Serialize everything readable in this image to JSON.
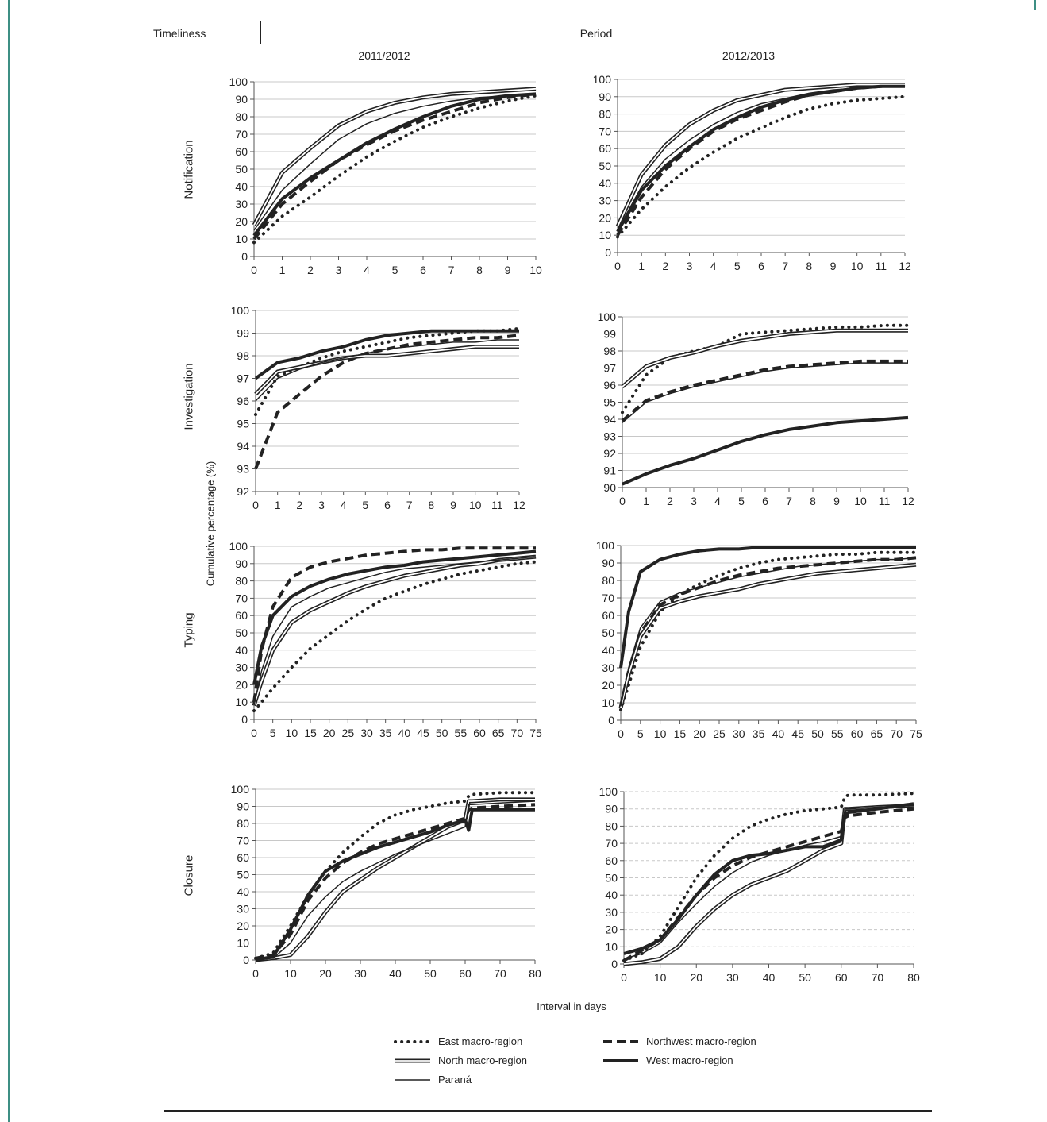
{
  "header": {
    "col1": "Timeliness",
    "col2": "Period"
  },
  "periods": [
    "2011/2012",
    "2012/2013"
  ],
  "rows": [
    "Notification",
    "Investigation",
    "Typing",
    "Closure"
  ],
  "y_axis_title": "Cumulative percentage (%)",
  "x_axis_title": "Interval in days",
  "series_names": [
    "East macro-region",
    "Northwest macro-region",
    "North macro-region",
    "West macro-region",
    "Paraná"
  ],
  "chart_data": [
    {
      "type": "line",
      "panel": "Notification 2011/2012",
      "xlim": [
        0,
        10
      ],
      "ylim": [
        0,
        100
      ],
      "xticks": [
        0,
        1,
        2,
        3,
        4,
        5,
        6,
        7,
        8,
        9,
        10
      ],
      "yticks": [
        0,
        10,
        20,
        30,
        40,
        50,
        60,
        70,
        80,
        90,
        100
      ],
      "x": [
        0,
        1,
        2,
        3,
        4,
        5,
        6,
        7,
        8,
        9,
        10
      ],
      "series": [
        {
          "name": "East macro-region",
          "values": [
            8,
            23,
            34,
            46,
            57,
            66,
            74,
            80,
            85,
            89,
            92
          ]
        },
        {
          "name": "Northwest macro-region",
          "values": [
            10,
            30,
            43,
            55,
            64,
            72,
            78,
            83,
            88,
            91,
            93
          ]
        },
        {
          "name": "North macro-region",
          "values": [
            18,
            48,
            62,
            75,
            83,
            88,
            91,
            93,
            94,
            95,
            96
          ]
        },
        {
          "name": "West macro-region",
          "values": [
            12,
            33,
            45,
            55,
            65,
            73,
            80,
            86,
            90,
            92,
            93
          ]
        },
        {
          "name": "Paraná",
          "values": [
            15,
            38,
            53,
            67,
            76,
            82,
            86,
            89,
            91,
            92,
            93
          ]
        }
      ]
    },
    {
      "type": "line",
      "panel": "Notification 2012/2013",
      "xlim": [
        0,
        12
      ],
      "ylim": [
        0,
        100
      ],
      "xticks": [
        0,
        1,
        2,
        3,
        4,
        5,
        6,
        7,
        8,
        9,
        10,
        11,
        12
      ],
      "yticks": [
        0,
        10,
        20,
        30,
        40,
        50,
        60,
        70,
        80,
        90,
        100
      ],
      "x": [
        0,
        1,
        2,
        3,
        4,
        5,
        6,
        7,
        8,
        9,
        10,
        11,
        12
      ],
      "series": [
        {
          "name": "East macro-region",
          "values": [
            9,
            25,
            38,
            49,
            58,
            66,
            72,
            78,
            83,
            86,
            88,
            89,
            90
          ]
        },
        {
          "name": "Northwest macro-region",
          "values": [
            10,
            32,
            48,
            60,
            70,
            77,
            82,
            87,
            91,
            93,
            95,
            96,
            97
          ]
        },
        {
          "name": "North macro-region",
          "values": [
            15,
            45,
            62,
            74,
            82,
            88,
            91,
            94,
            95,
            96,
            97,
            97,
            97
          ]
        },
        {
          "name": "West macro-region",
          "values": [
            12,
            36,
            50,
            61,
            71,
            78,
            84,
            88,
            91,
            93,
            95,
            96,
            96
          ]
        },
        {
          "name": "Paraná",
          "values": [
            13,
            38,
            54,
            65,
            74,
            81,
            86,
            89,
            92,
            94,
            95,
            96,
            96
          ]
        }
      ]
    },
    {
      "type": "line",
      "panel": "Investigation 2011/2012",
      "xlim": [
        0,
        12
      ],
      "ylim": [
        92,
        100
      ],
      "xticks": [
        0,
        1,
        2,
        3,
        4,
        5,
        6,
        7,
        8,
        9,
        10,
        11,
        12
      ],
      "yticks": [
        92,
        93,
        94,
        95,
        96,
        97,
        98,
        99,
        100
      ],
      "x": [
        0,
        1,
        2,
        3,
        4,
        5,
        6,
        7,
        8,
        9,
        10,
        11,
        12
      ],
      "series": [
        {
          "name": "East macro-region",
          "values": [
            95.4,
            97.1,
            97.5,
            97.9,
            98.2,
            98.4,
            98.6,
            98.8,
            98.9,
            99.0,
            99.1,
            99.1,
            99.2
          ]
        },
        {
          "name": "Northwest macro-region",
          "values": [
            93.0,
            95.5,
            96.3,
            97.1,
            97.7,
            98.1,
            98.3,
            98.5,
            98.6,
            98.7,
            98.8,
            98.8,
            98.9
          ]
        },
        {
          "name": "North macro-region",
          "values": [
            96.3,
            97.3,
            97.5,
            97.7,
            97.9,
            98.0,
            98.0,
            98.1,
            98.2,
            98.3,
            98.4,
            98.4,
            98.4
          ]
        },
        {
          "name": "West macro-region",
          "values": [
            97.0,
            97.7,
            97.9,
            98.2,
            98.4,
            98.7,
            98.9,
            99.0,
            99.1,
            99.1,
            99.1,
            99.1,
            99.1
          ]
        },
        {
          "name": "Paraná",
          "values": [
            96.0,
            97.0,
            97.4,
            97.7,
            97.9,
            98.1,
            98.3,
            98.4,
            98.5,
            98.6,
            98.6,
            98.7,
            98.7
          ]
        }
      ]
    },
    {
      "type": "line",
      "panel": "Investigation 2012/2013",
      "xlim": [
        0,
        12
      ],
      "ylim": [
        90,
        100
      ],
      "xticks": [
        0,
        1,
        2,
        3,
        4,
        5,
        6,
        7,
        8,
        9,
        10,
        11,
        12
      ],
      "yticks": [
        90,
        91,
        92,
        93,
        94,
        95,
        96,
        97,
        98,
        99,
        100
      ],
      "x": [
        0,
        1,
        2,
        3,
        4,
        5,
        6,
        7,
        8,
        9,
        10,
        11,
        12
      ],
      "series": [
        {
          "name": "East macro-region",
          "values": [
            94.4,
            96.6,
            97.6,
            98.0,
            98.3,
            99.0,
            99.1,
            99.2,
            99.3,
            99.4,
            99.4,
            99.5,
            99.5
          ]
        },
        {
          "name": "Northwest macro-region",
          "values": [
            93.9,
            95.1,
            95.6,
            96.0,
            96.3,
            96.6,
            96.9,
            97.1,
            97.2,
            97.3,
            97.4,
            97.4,
            97.4
          ]
        },
        {
          "name": "North macro-region",
          "values": [
            95.9,
            97.1,
            97.6,
            97.9,
            98.3,
            98.6,
            98.8,
            99.0,
            99.1,
            99.2,
            99.2,
            99.2,
            99.2
          ]
        },
        {
          "name": "West macro-region",
          "values": [
            90.2,
            90.8,
            91.3,
            91.7,
            92.2,
            92.7,
            93.1,
            93.4,
            93.6,
            93.8,
            93.9,
            94.0,
            94.1
          ]
        },
        {
          "name": "Paraná",
          "values": [
            93.8,
            95.0,
            95.5,
            95.9,
            96.2,
            96.5,
            96.8,
            97.0,
            97.1,
            97.2,
            97.3,
            97.3,
            97.3
          ]
        }
      ]
    },
    {
      "type": "line",
      "panel": "Typing 2011/2012",
      "xlim": [
        0,
        75
      ],
      "ylim": [
        0,
        100
      ],
      "xticks": [
        0,
        5,
        10,
        15,
        20,
        25,
        30,
        35,
        40,
        45,
        50,
        55,
        60,
        65,
        70,
        75
      ],
      "yticks": [
        0,
        10,
        20,
        30,
        40,
        50,
        60,
        70,
        80,
        90,
        100
      ],
      "x": [
        0,
        2,
        5,
        10,
        15,
        20,
        25,
        30,
        35,
        40,
        45,
        50,
        55,
        60,
        65,
        70,
        75
      ],
      "series": [
        {
          "name": "East macro-region",
          "values": [
            5,
            10,
            18,
            30,
            41,
            49,
            57,
            64,
            70,
            74,
            78,
            81,
            84,
            86,
            88,
            90,
            91
          ]
        },
        {
          "name": "Northwest macro-region",
          "values": [
            10,
            40,
            65,
            82,
            88,
            91,
            93,
            95,
            96,
            97,
            98,
            98,
            99,
            99,
            99,
            99,
            99
          ]
        },
        {
          "name": "North macro-region",
          "values": [
            8,
            22,
            40,
            56,
            63,
            68,
            73,
            77,
            80,
            83,
            85,
            87,
            89,
            90,
            92,
            93,
            94
          ]
        },
        {
          "name": "West macro-region",
          "values": [
            20,
            42,
            60,
            71,
            77,
            81,
            84,
            86,
            88,
            89,
            91,
            92,
            93,
            94,
            95,
            96,
            97
          ]
        },
        {
          "name": "Paraná",
          "values": [
            8,
            28,
            48,
            65,
            71,
            76,
            79,
            82,
            85,
            87,
            88,
            89,
            90,
            91,
            92,
            93,
            94
          ]
        }
      ]
    },
    {
      "type": "line",
      "panel": "Typing 2012/2013",
      "xlim": [
        0,
        75
      ],
      "ylim": [
        0,
        100
      ],
      "xticks": [
        0,
        5,
        10,
        15,
        20,
        25,
        30,
        35,
        40,
        45,
        50,
        55,
        60,
        65,
        70,
        75
      ],
      "yticks": [
        0,
        10,
        20,
        30,
        40,
        50,
        60,
        70,
        80,
        90,
        100
      ],
      "x": [
        0,
        2,
        5,
        10,
        15,
        20,
        25,
        30,
        35,
        40,
        45,
        50,
        55,
        60,
        65,
        70,
        75
      ],
      "series": [
        {
          "name": "East macro-region",
          "values": [
            6,
            20,
            42,
            62,
            72,
            78,
            83,
            87,
            90,
            92,
            93,
            94,
            95,
            95,
            96,
            96,
            96
          ]
        },
        {
          "name": "Northwest macro-region",
          "values": [
            8,
            28,
            50,
            66,
            72,
            76,
            80,
            83,
            85,
            87,
            88,
            89,
            90,
            91,
            92,
            92,
            93
          ]
        },
        {
          "name": "North macro-region",
          "values": [
            7,
            26,
            48,
            64,
            68,
            71,
            73,
            75,
            78,
            80,
            82,
            84,
            85,
            86,
            87,
            88,
            89
          ]
        },
        {
          "name": "West macro-region",
          "values": [
            30,
            62,
            85,
            92,
            95,
            97,
            98,
            98,
            99,
            99,
            99,
            99,
            99,
            99,
            99,
            99,
            99
          ]
        },
        {
          "name": "Paraná",
          "values": [
            8,
            30,
            53,
            68,
            73,
            76,
            79,
            82,
            84,
            86,
            88,
            89,
            90,
            91,
            92,
            92,
            93
          ]
        }
      ]
    },
    {
      "type": "line",
      "panel": "Closure 2011/2012",
      "xlim": [
        0,
        80
      ],
      "ylim": [
        0,
        100
      ],
      "xticks": [
        0,
        10,
        20,
        30,
        40,
        50,
        60,
        70,
        80
      ],
      "yticks": [
        0,
        10,
        20,
        30,
        40,
        50,
        60,
        70,
        80,
        90,
        100
      ],
      "x": [
        0,
        5,
        10,
        15,
        20,
        25,
        30,
        35,
        40,
        45,
        50,
        55,
        60,
        61,
        62,
        70,
        80
      ],
      "series": [
        {
          "name": "East macro-region",
          "values": [
            1,
            4,
            20,
            38,
            52,
            63,
            72,
            80,
            85,
            88,
            90,
            92,
            93,
            96,
            97,
            98,
            98
          ]
        },
        {
          "name": "Northwest macro-region",
          "values": [
            1,
            3,
            15,
            35,
            48,
            57,
            63,
            68,
            71,
            74,
            77,
            80,
            83,
            88,
            89,
            90,
            91
          ]
        },
        {
          "name": "North macro-region",
          "values": [
            0,
            1,
            3,
            14,
            28,
            40,
            47,
            54,
            60,
            66,
            72,
            78,
            82,
            93,
            93,
            94,
            94
          ]
        },
        {
          "name": "West macro-region",
          "values": [
            0,
            2,
            18,
            38,
            52,
            58,
            62,
            66,
            69,
            72,
            75,
            79,
            82,
            76,
            88,
            88,
            88
          ]
        },
        {
          "name": "Paraná",
          "values": [
            0,
            1,
            10,
            26,
            37,
            46,
            52,
            57,
            62,
            66,
            70,
            74,
            78,
            91,
            91,
            92,
            93
          ]
        }
      ]
    },
    {
      "type": "line",
      "panel": "Closure 2012/2013",
      "xlim": [
        0,
        80
      ],
      "ylim": [
        0,
        100
      ],
      "xticks": [
        0,
        10,
        20,
        30,
        40,
        50,
        60,
        70,
        80
      ],
      "yticks": [
        0,
        10,
        20,
        30,
        40,
        50,
        60,
        70,
        80,
        90,
        100
      ],
      "x": [
        0,
        5,
        10,
        15,
        20,
        25,
        30,
        35,
        40,
        45,
        50,
        55,
        60,
        61,
        62,
        70,
        80
      ],
      "series": [
        {
          "name": "East macro-region",
          "values": [
            2,
            6,
            16,
            33,
            50,
            63,
            73,
            80,
            84,
            87,
            89,
            90,
            91,
            97,
            98,
            98,
            99
          ]
        },
        {
          "name": "Northwest macro-region",
          "values": [
            2,
            8,
            14,
            27,
            40,
            50,
            57,
            62,
            65,
            68,
            71,
            74,
            77,
            85,
            86,
            88,
            90
          ]
        },
        {
          "name": "North macro-region",
          "values": [
            0,
            1,
            3,
            10,
            22,
            32,
            40,
            46,
            50,
            54,
            60,
            66,
            70,
            90,
            90,
            91,
            92
          ]
        },
        {
          "name": "West macro-region",
          "values": [
            6,
            9,
            14,
            26,
            40,
            52,
            60,
            63,
            64,
            66,
            68,
            68,
            72,
            86,
            88,
            90,
            93
          ]
        },
        {
          "name": "Paraná",
          "values": [
            3,
            6,
            12,
            24,
            35,
            45,
            53,
            59,
            63,
            66,
            69,
            71,
            74,
            90,
            90,
            91,
            92
          ]
        }
      ]
    }
  ]
}
